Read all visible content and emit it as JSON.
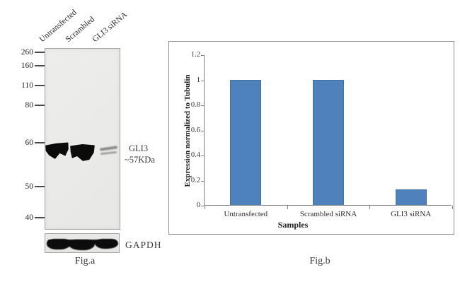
{
  "figure": {
    "fig_a": {
      "caption": "Fig.a",
      "lanes": [
        "Untransfected",
        "Scrambled",
        "GLI3 siRNA"
      ],
      "mw_markers": [
        "260",
        "160",
        "110",
        "80",
        "60",
        "50",
        "40"
      ],
      "target_label": "GLI3",
      "target_mw": "~57KDa",
      "loading_control": "GAPDH"
    },
    "fig_b": {
      "caption": "Fig.b",
      "chart_data": {
        "type": "bar",
        "categories": [
          "Untransfected",
          "Scrambled siRNA",
          "GLI3 siRNA"
        ],
        "values": [
          1.0,
          0.995,
          0.125
        ],
        "title": "",
        "xlabel": "Samples",
        "ylabel": "Expression normalized to Tubulin",
        "ylim": [
          0,
          1.2
        ],
        "ytick_step": 0.2,
        "bar_color": "#4F81BD",
        "bar_edge_color": "#4272A4",
        "grid": false,
        "legend_position": "none"
      }
    }
  }
}
